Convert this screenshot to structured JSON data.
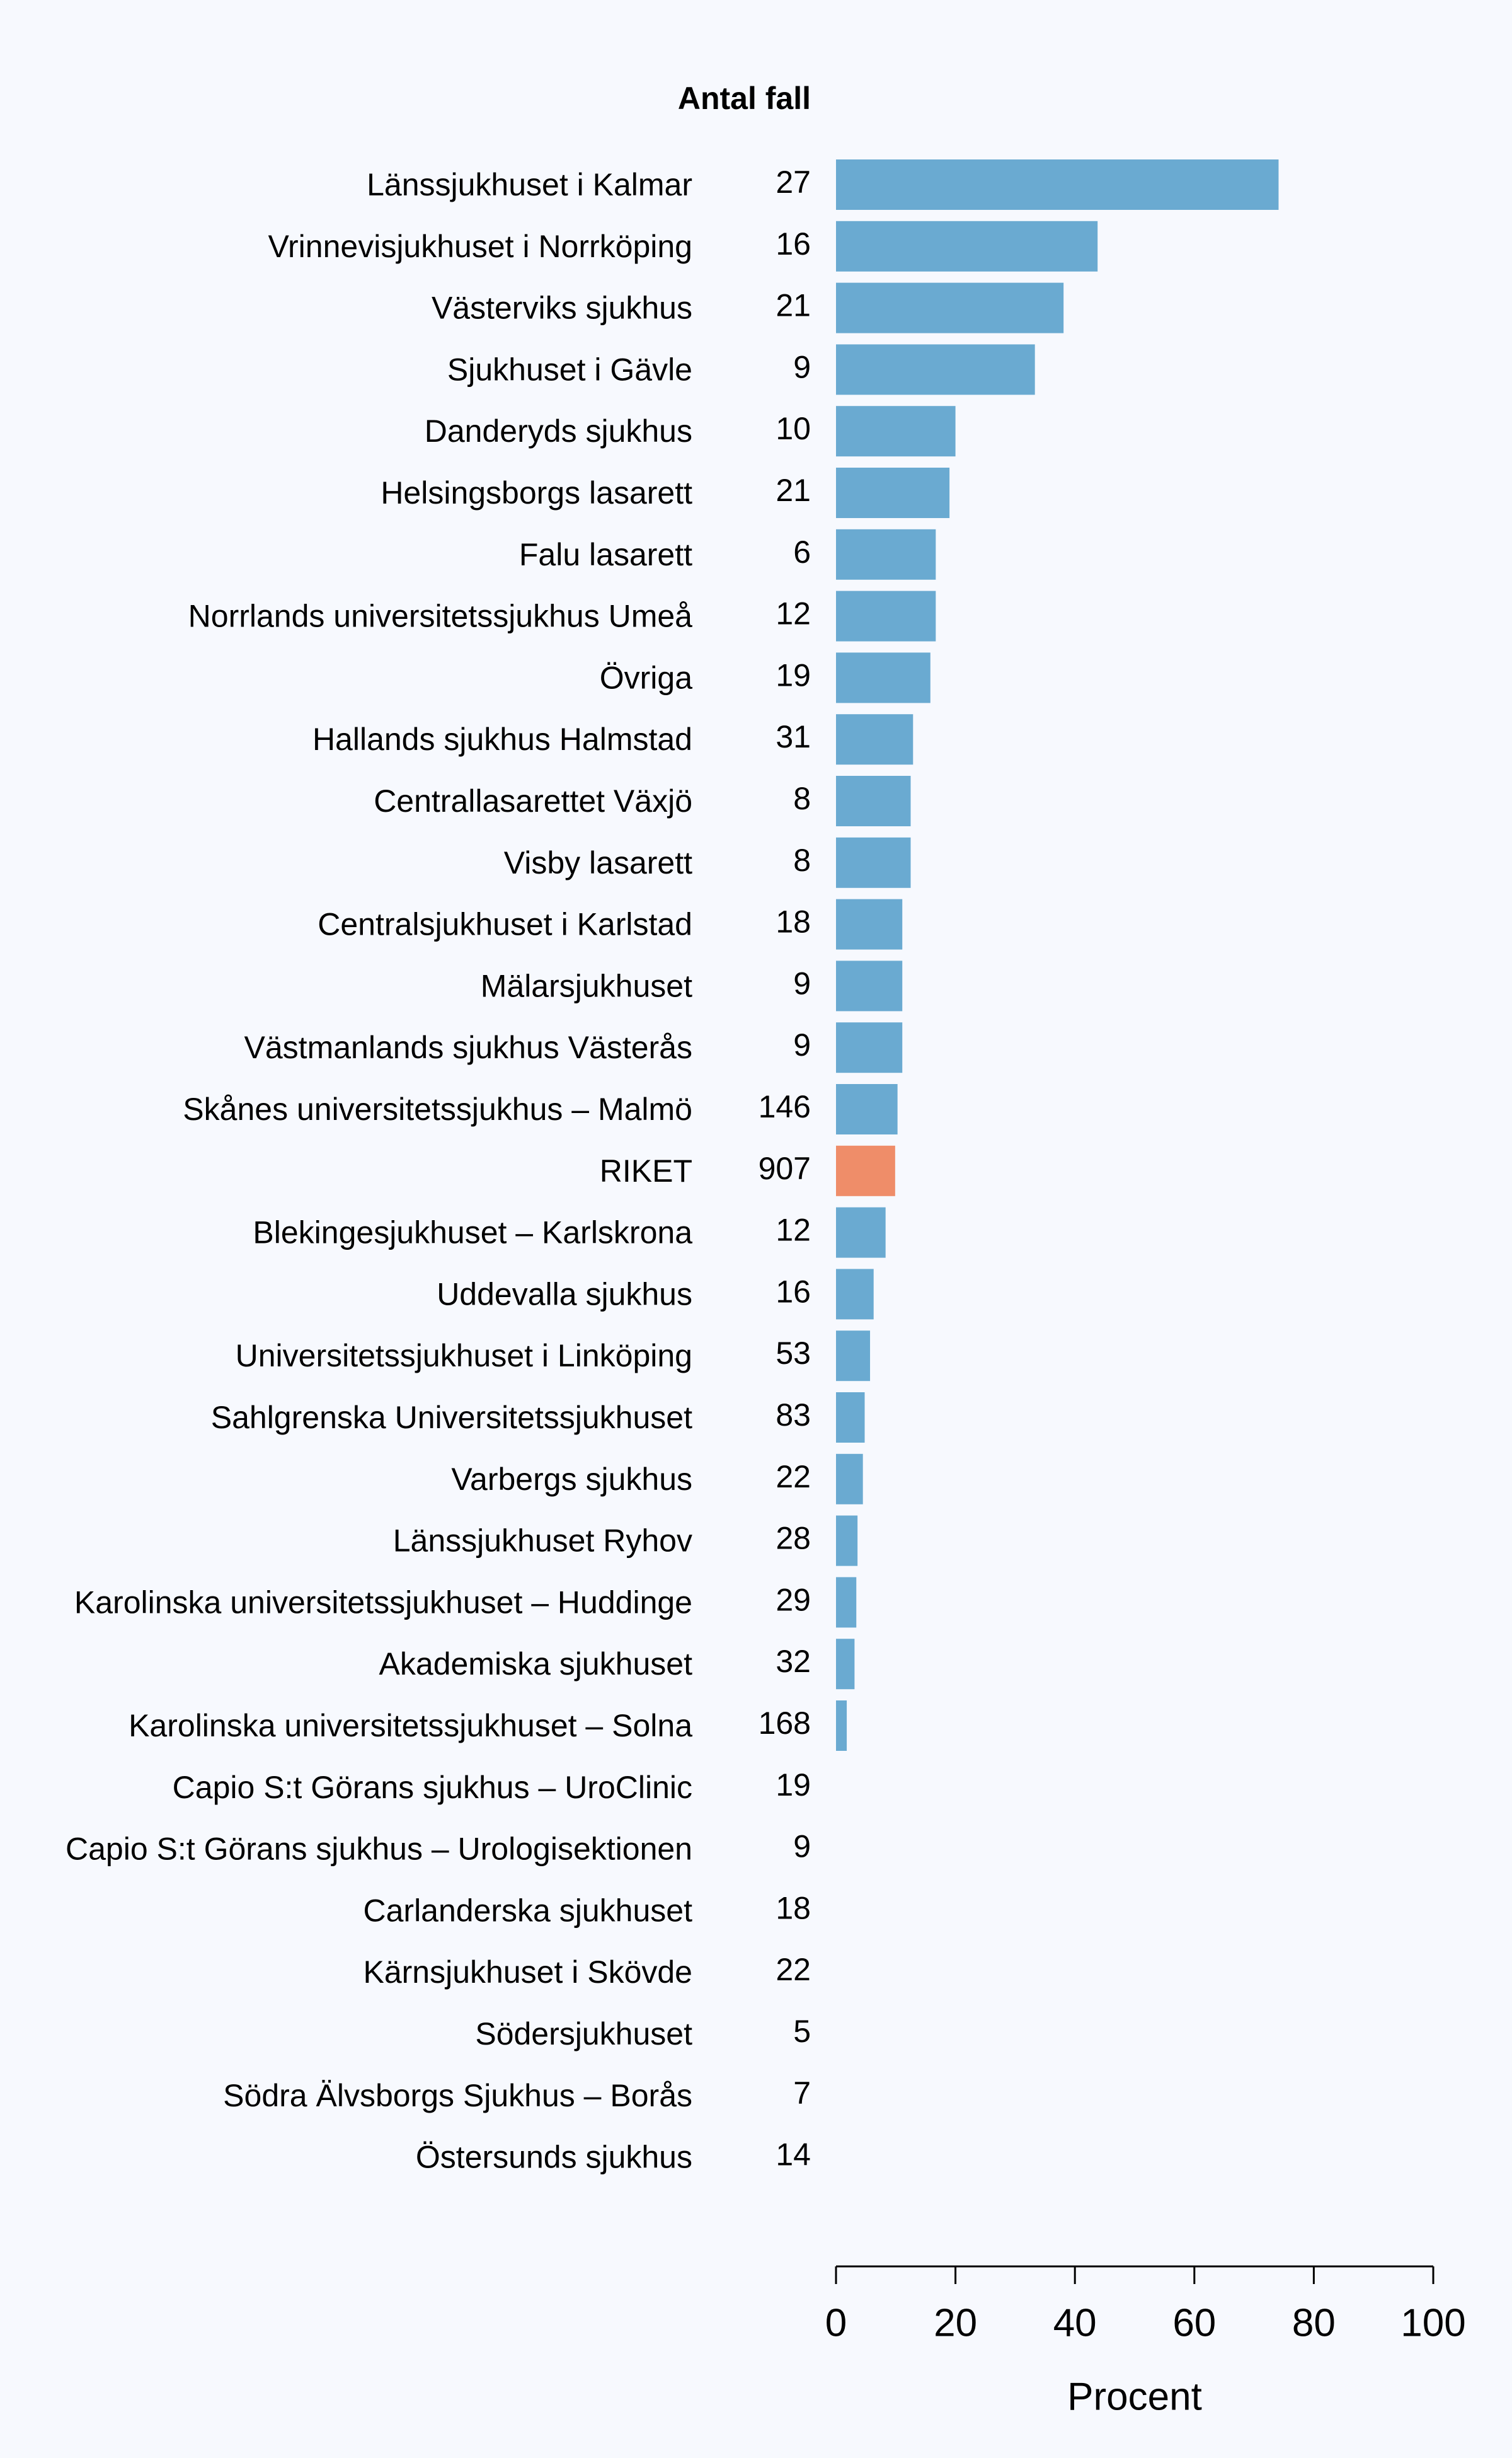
{
  "chart_data": {
    "type": "bar",
    "orientation": "horizontal",
    "count_header": "Antal fall",
    "xlabel": "Procent",
    "xlim": [
      0,
      100
    ],
    "xticks": [
      "0",
      "20",
      "40",
      "60",
      "80",
      "100"
    ],
    "grid": false,
    "colors": {
      "bar": "#6AAAD1",
      "highlight": "#EF8D69",
      "background": "#F7F9FE"
    },
    "highlight_category": "RIKET",
    "rows": [
      {
        "label": "Länssjukhuset i Kalmar",
        "count": "27",
        "value": 74.1
      },
      {
        "label": "Vrinnevisjukhuset i Norrköping",
        "count": "16",
        "value": 43.8
      },
      {
        "label": "Västerviks sjukhus",
        "count": "21",
        "value": 38.1
      },
      {
        "label": "Sjukhuset i Gävle",
        "count": "9",
        "value": 33.3
      },
      {
        "label": "Danderyds sjukhus",
        "count": "10",
        "value": 20.0
      },
      {
        "label": "Helsingsborgs lasarett",
        "count": "21",
        "value": 19.0
      },
      {
        "label": "Falu lasarett",
        "count": "6",
        "value": 16.7
      },
      {
        "label": "Norrlands universitetssjukhus Umeå",
        "count": "12",
        "value": 16.7
      },
      {
        "label": "Övriga",
        "count": "19",
        "value": 15.8
      },
      {
        "label": "Hallands sjukhus Halmstad",
        "count": "31",
        "value": 12.9
      },
      {
        "label": "Centrallasarettet Växjö",
        "count": "8",
        "value": 12.5
      },
      {
        "label": "Visby lasarett",
        "count": "8",
        "value": 12.5
      },
      {
        "label": "Centralsjukhuset i Karlstad",
        "count": "18",
        "value": 11.1
      },
      {
        "label": "Mälarsjukhuset",
        "count": "9",
        "value": 11.1
      },
      {
        "label": "Västmanlands sjukhus Västerås",
        "count": "9",
        "value": 11.1
      },
      {
        "label": "Skånes universitetssjukhus – Malmö",
        "count": "146",
        "value": 10.3
      },
      {
        "label": "RIKET",
        "count": "907",
        "value": 9.9
      },
      {
        "label": "Blekingesjukhuset – Karlskrona",
        "count": "12",
        "value": 8.3
      },
      {
        "label": "Uddevalla sjukhus",
        "count": "16",
        "value": 6.3
      },
      {
        "label": "Universitetssjukhuset i Linköping",
        "count": "53",
        "value": 5.7
      },
      {
        "label": "Sahlgrenska Universitetssjukhuset",
        "count": "83",
        "value": 4.8
      },
      {
        "label": "Varbergs sjukhus",
        "count": "22",
        "value": 4.5
      },
      {
        "label": "Länssjukhuset Ryhov",
        "count": "28",
        "value": 3.6
      },
      {
        "label": "Karolinska universitetssjukhuset – Huddinge",
        "count": "29",
        "value": 3.4
      },
      {
        "label": "Akademiska sjukhuset",
        "count": "32",
        "value": 3.1
      },
      {
        "label": "Karolinska universitetssjukhuset – Solna",
        "count": "168",
        "value": 1.8
      },
      {
        "label": "Capio S:t Görans sjukhus – UroClinic",
        "count": "19",
        "value": 0
      },
      {
        "label": "Capio S:t Görans sjukhus – Urologisektionen",
        "count": "9",
        "value": 0
      },
      {
        "label": "Carlanderska sjukhuset",
        "count": "18",
        "value": 0
      },
      {
        "label": "Kärnsjukhuset i Skövde",
        "count": "22",
        "value": 0
      },
      {
        "label": "Södersjukhuset",
        "count": "5",
        "value": 0
      },
      {
        "label": "Södra Älvsborgs Sjukhus – Borås",
        "count": "7",
        "value": 0
      },
      {
        "label": "Östersunds sjukhus",
        "count": "14",
        "value": 0
      }
    ]
  }
}
